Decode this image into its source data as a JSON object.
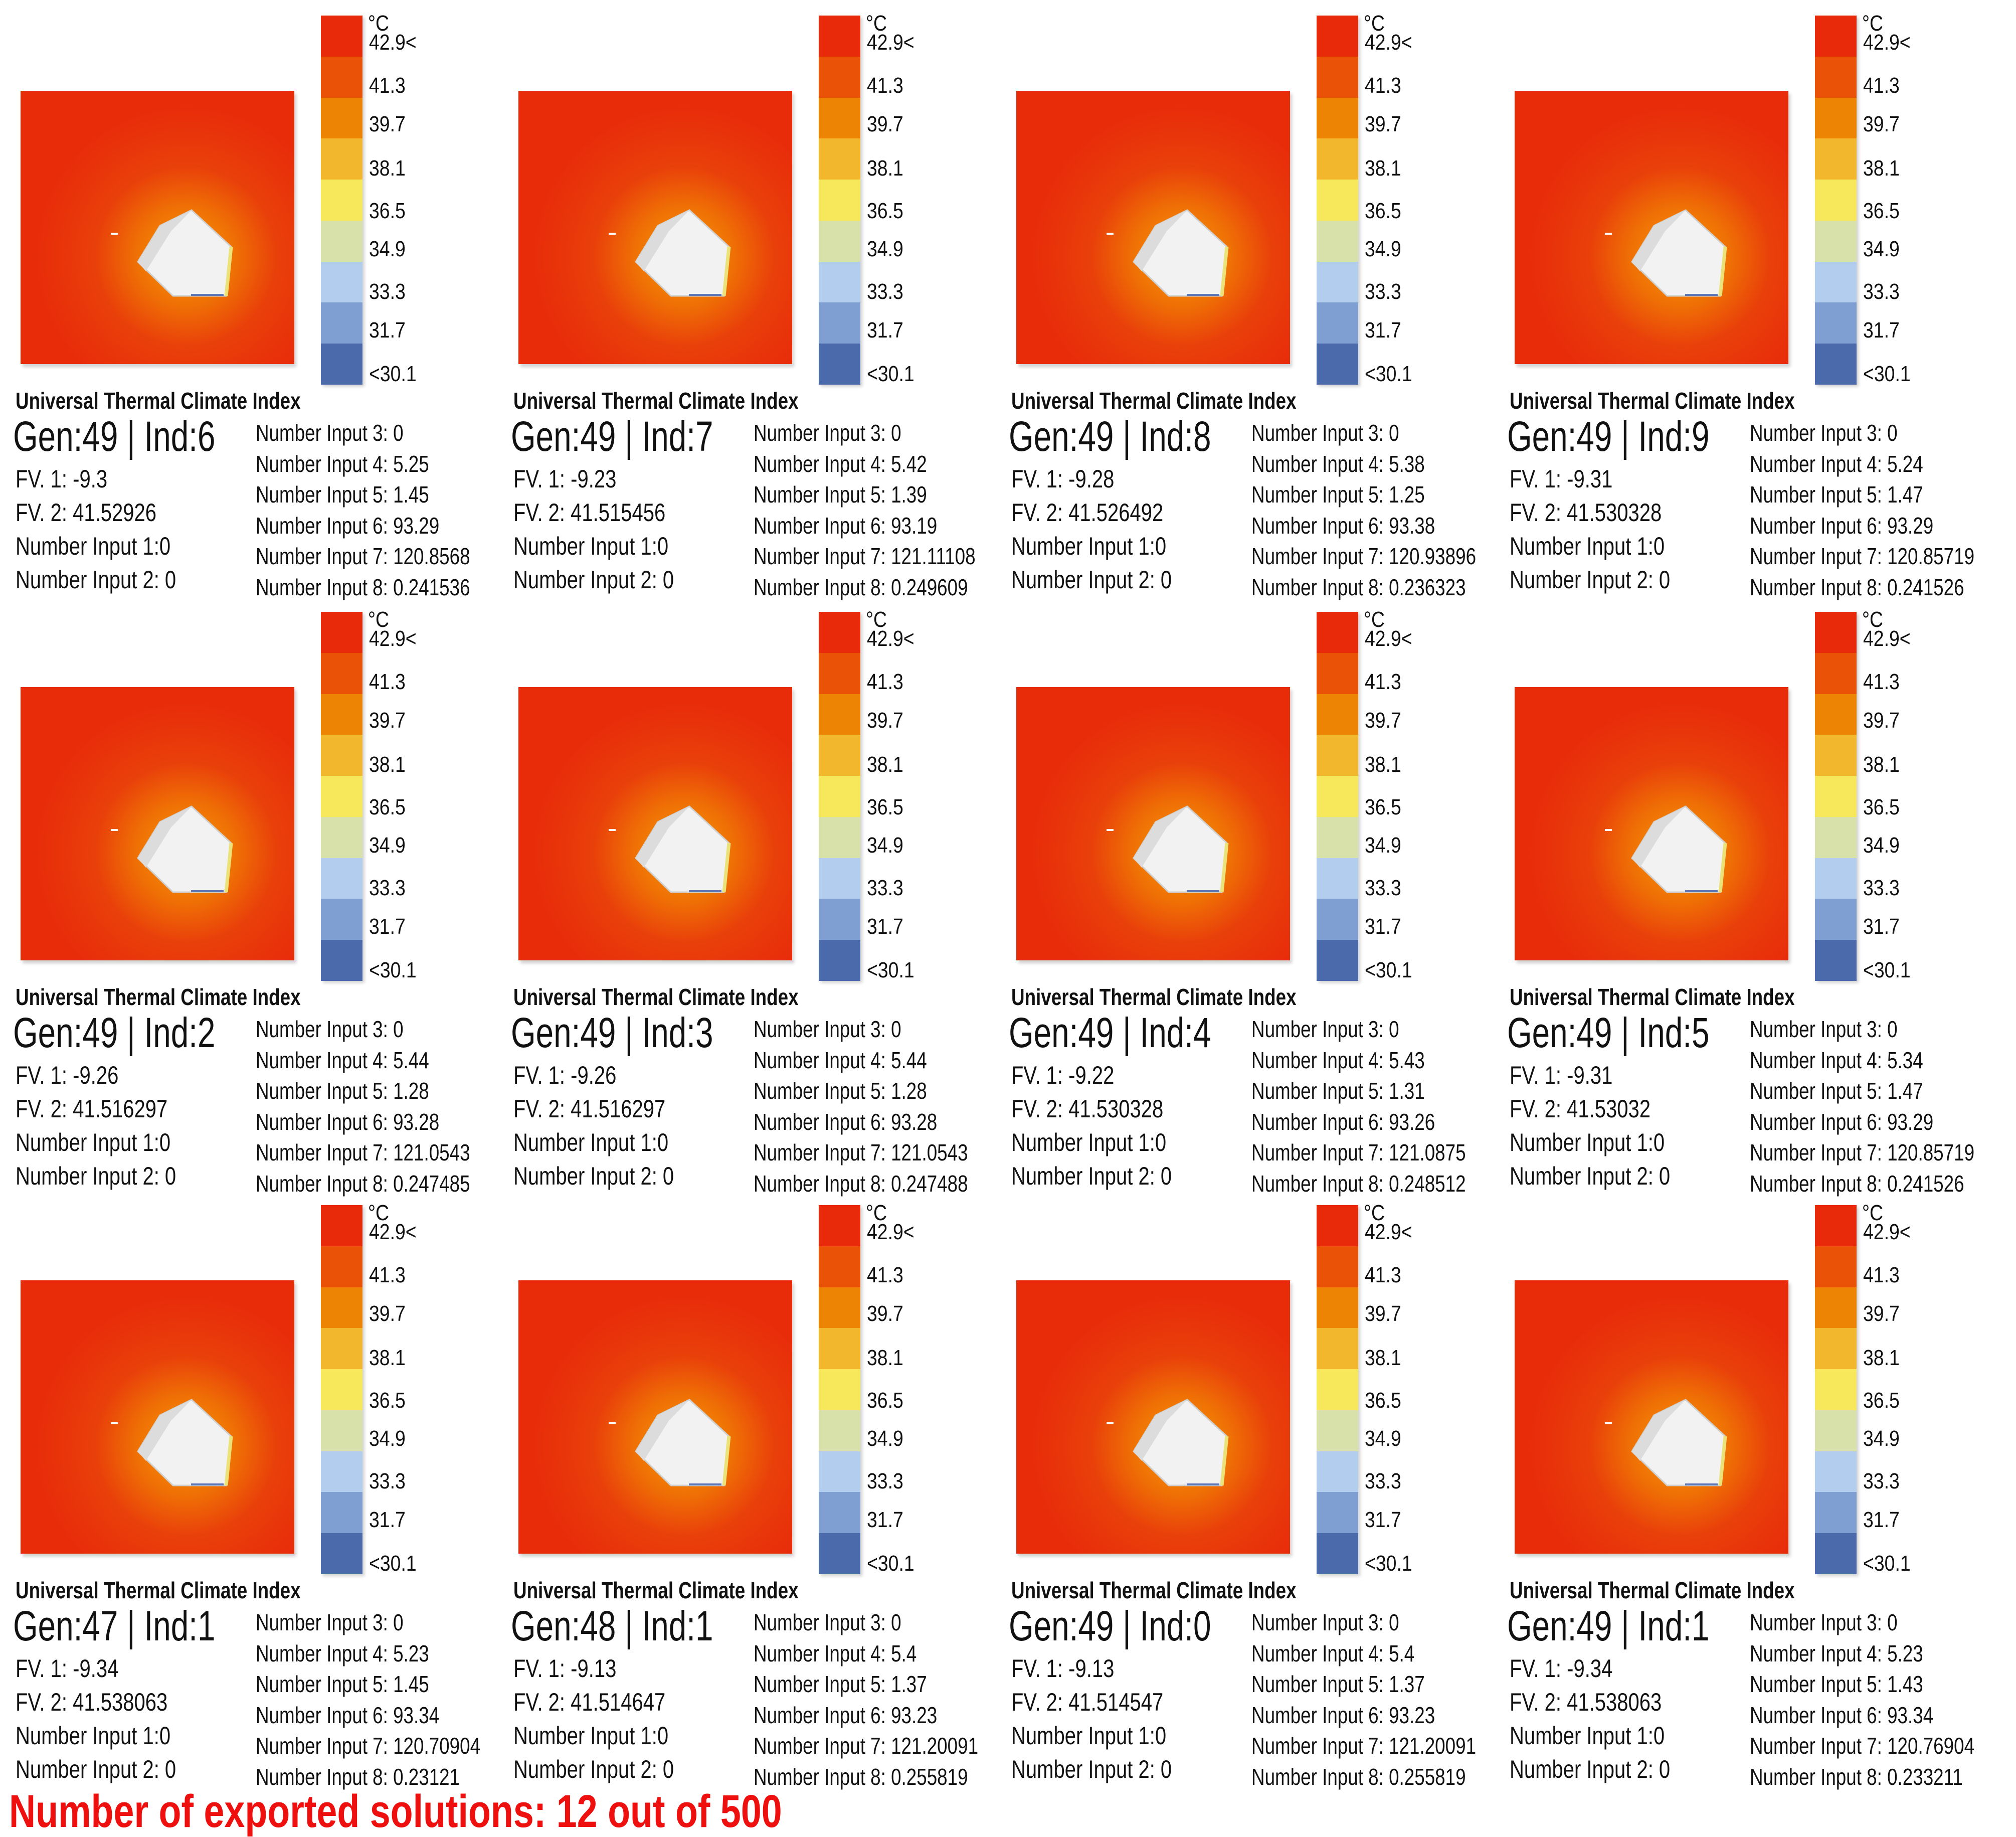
{
  "legend": {
    "unit": "°C",
    "ticks": [
      "42.9<",
      "41.3",
      "39.7",
      "38.1",
      "36.5",
      "34.9",
      "33.3",
      "31.7",
      "<30.1"
    ],
    "colors": [
      "#e8290a",
      "#ea5307",
      "#ed8404",
      "#f3b72e",
      "#f6e85a",
      "#d7e1a9",
      "#b3cdee",
      "#7f9ed2",
      "#4a6aab"
    ]
  },
  "heatmap_colors": {
    "background": "#e82c0a",
    "glow": "#f49a04",
    "building": "#f2f2f2"
  },
  "panels": [
    {
      "title": "Universal Thermal Climate Index",
      "gen": "Gen:49 | Ind:6",
      "left": [
        "FV. 1: -9.3",
        "FV. 2: 41.52926",
        "Number Input 1:0",
        "Number Input 2: 0"
      ],
      "right": [
        "Number Input 3: 0",
        "Number Input 4: 5.25",
        "Number Input 5: 1.45",
        "Number Input 6: 93.29",
        "Number Input 7: 120.8568",
        "Number Input 8: 0.241536"
      ]
    },
    {
      "title": "Universal Thermal Climate Index",
      "gen": "Gen:49 | Ind:7",
      "left": [
        "FV. 1: -9.23",
        "FV. 2: 41.515456",
        "Number Input 1:0",
        "Number Input 2: 0"
      ],
      "right": [
        "Number Input 3: 0",
        "Number Input 4: 5.42",
        "Number Input 5: 1.39",
        "Number Input 6: 93.19",
        "Number Input 7: 121.11108",
        "Number Input 8: 0.249609"
      ]
    },
    {
      "title": "Universal Thermal Climate Index",
      "gen": "Gen:49 | Ind:8",
      "left": [
        "FV. 1: -9.28",
        "FV. 2: 41.526492",
        "Number Input 1:0",
        "Number Input 2: 0"
      ],
      "right": [
        "Number Input 3: 0",
        "Number Input 4: 5.38",
        "Number Input 5: 1.25",
        "Number Input 6: 93.38",
        "Number Input 7: 120.93896",
        "Number Input 8: 0.236323"
      ]
    },
    {
      "title": "Universal Thermal Climate Index",
      "gen": "Gen:49 | Ind:9",
      "left": [
        "FV. 1: -9.31",
        "FV. 2: 41.530328",
        "Number Input 1:0",
        "Number Input 2: 0"
      ],
      "right": [
        "Number Input 3: 0",
        "Number Input 4: 5.24",
        "Number Input 5: 1.47",
        "Number Input 6: 93.29",
        "Number Input 7: 120.85719",
        "Number Input 8: 0.241526"
      ]
    },
    {
      "title": "Universal Thermal Climate Index",
      "gen": "Gen:49 | Ind:2",
      "left": [
        "FV. 1: -9.26",
        "FV. 2: 41.516297",
        "Number Input 1:0",
        "Number Input 2: 0"
      ],
      "right": [
        "Number Input 3: 0",
        "Number Input 4: 5.44",
        "Number Input 5: 1.28",
        "Number Input 6: 93.28",
        "Number Input 7: 121.0543",
        "Number Input 8: 0.247485"
      ]
    },
    {
      "title": "Universal Thermal Climate Index",
      "gen": "Gen:49 | Ind:3",
      "left": [
        "FV. 1: -9.26",
        "FV. 2: 41.516297",
        "Number Input 1:0",
        "Number Input 2: 0"
      ],
      "right": [
        "Number Input 3: 0",
        "Number Input 4: 5.44",
        "Number Input 5: 1.28",
        "Number Input 6: 93.28",
        "Number Input 7: 121.0543",
        "Number Input 8: 0.247488"
      ]
    },
    {
      "title": "Universal Thermal Climate Index",
      "gen": "Gen:49 | Ind:4",
      "left": [
        "FV. 1: -9.22",
        "FV. 2: 41.530328",
        "Number Input 1:0",
        "Number Input 2: 0"
      ],
      "right": [
        "Number Input 3: 0",
        "Number Input 4: 5.43",
        "Number Input 5: 1.31",
        "Number Input 6: 93.26",
        "Number Input 7: 121.0875",
        "Number Input 8: 0.248512"
      ]
    },
    {
      "title": "Universal Thermal Climate Index",
      "gen": "Gen:49 | Ind:5",
      "left": [
        "FV. 1: -9.31",
        "FV. 2: 41.53032",
        "Number Input 1:0",
        "Number Input 2: 0"
      ],
      "right": [
        "Number Input 3: 0",
        "Number Input 4: 5.34",
        "Number Input 5: 1.47",
        "Number Input 6: 93.29",
        "Number Input 7: 120.85719",
        "Number Input 8: 0.241526"
      ]
    },
    {
      "title": "Universal Thermal Climate Index",
      "gen": "Gen:47 | Ind:1",
      "left": [
        "FV. 1: -9.34",
        "FV. 2: 41.538063",
        "Number Input 1:0",
        "Number Input 2: 0"
      ],
      "right": [
        "Number Input 3: 0",
        "Number Input 4: 5.23",
        "Number Input 5: 1.45",
        "Number Input 6: 93.34",
        "Number Input 7: 120.70904",
        "Number Input 8: 0.23121"
      ]
    },
    {
      "title": "Universal Thermal Climate Index",
      "gen": "Gen:48 | Ind:1",
      "left": [
        "FV. 1: -9.13",
        "FV. 2: 41.514647",
        "Number Input 1:0",
        "Number Input 2: 0"
      ],
      "right": [
        "Number Input 3: 0",
        "Number Input 4: 5.4",
        "Number Input 5: 1.37",
        "Number Input 6: 93.23",
        "Number Input 7: 121.20091",
        "Number Input 8: 0.255819"
      ]
    },
    {
      "title": "Universal Thermal Climate Index",
      "gen": "Gen:49 | Ind:0",
      "left": [
        "FV. 1: -9.13",
        "FV. 2: 41.514547",
        "Number Input 1:0",
        "Number Input 2: 0"
      ],
      "right": [
        "Number Input 3: 0",
        "Number Input 4: 5.4",
        "Number Input 5: 1.37",
        "Number Input 6: 93.23",
        "Number Input 7: 121.20091",
        "Number Input 8: 0.255819"
      ]
    },
    {
      "title": "Universal Thermal Climate Index",
      "gen": "Gen:49 | Ind:1",
      "left": [
        "FV. 1: -9.34",
        "FV. 2: 41.538063",
        "Number Input 1:0",
        "Number Input 2: 0"
      ],
      "right": [
        "Number Input 3: 0",
        "Number Input 4: 5.23",
        "Number Input 5: 1.43",
        "Number Input 6: 93.34",
        "Number Input 7: 120.76904",
        "Number Input 8: 0.233211"
      ]
    }
  ],
  "footer": "Number of exported solutions: 12 out of 500"
}
